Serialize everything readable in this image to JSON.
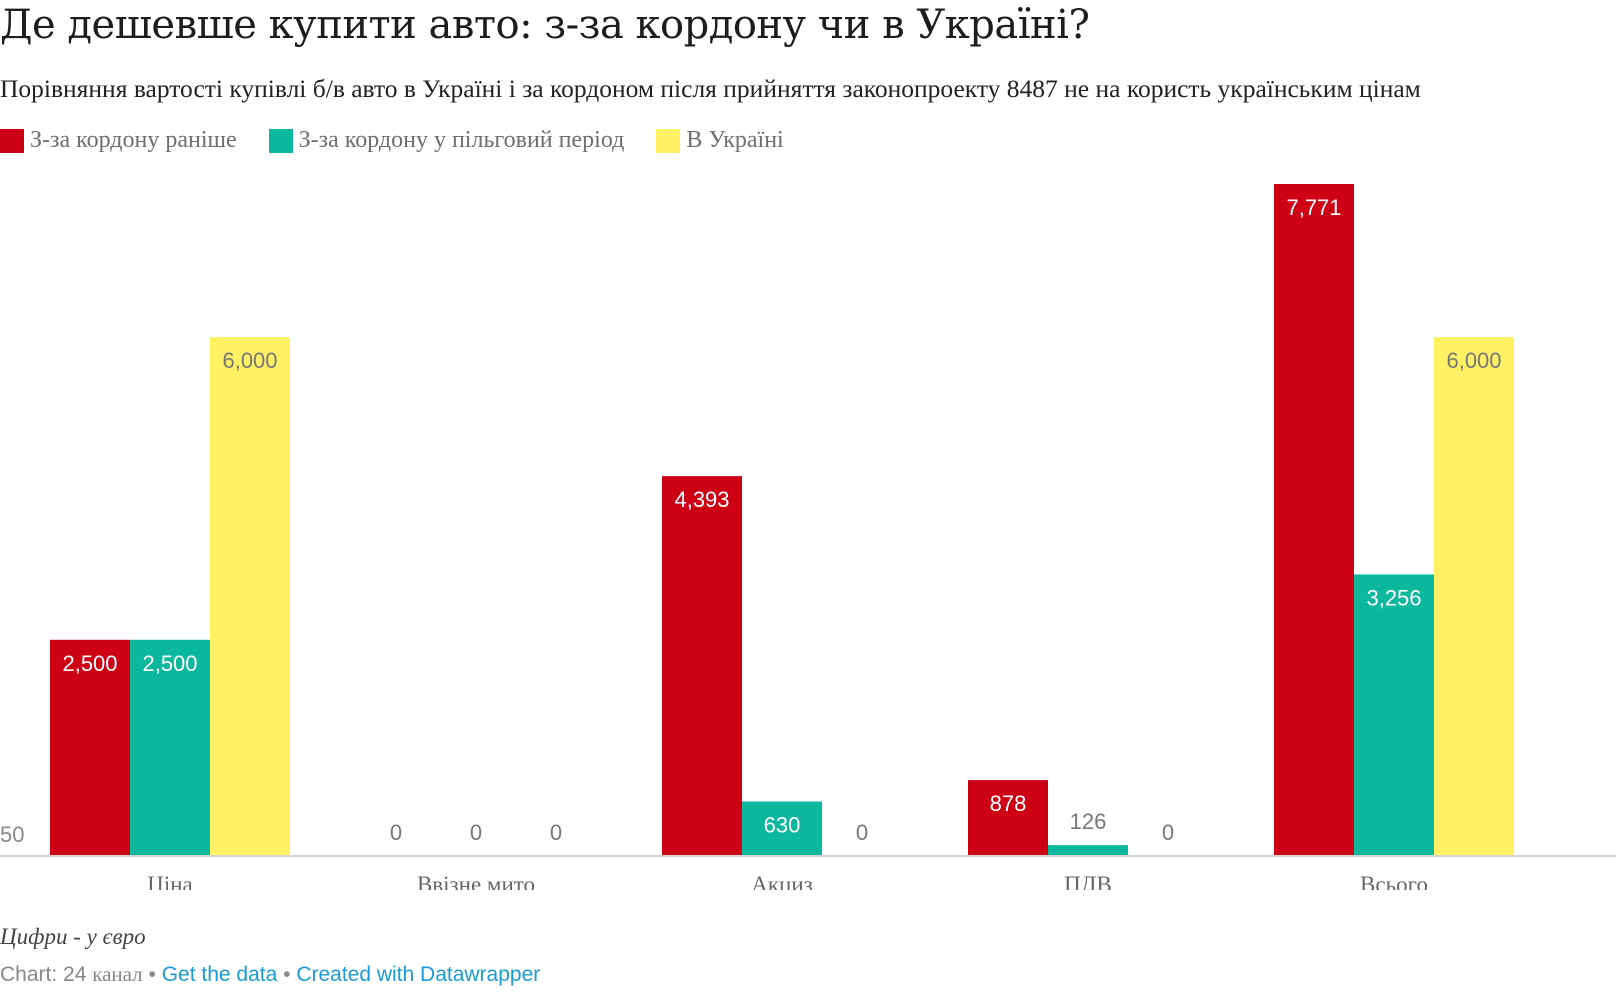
{
  "title": "Де дешевше купити авто: з-за кордону чи в Україні?",
  "subtitle": "Порівняння вартості купівлі б/в авто в Україні і за кордоном після прийняття законопроекту 8487 не на користь українським цінам",
  "colors": {
    "red": "#cd0016",
    "teal": "#0bb89c",
    "yellow": "#fff064"
  },
  "chart_data": {
    "type": "bar",
    "categories": [
      "Ціна",
      "Ввізне мито",
      "Акциз",
      "ПДВ",
      "Всього"
    ],
    "series": [
      {
        "name": "З-за кордону раніше",
        "color": "#cd0016",
        "values": [
          2500,
          0,
          4393,
          878,
          7771
        ]
      },
      {
        "name": "З-за кордону у пільговий період",
        "color": "#0bb89c",
        "values": [
          2500,
          0,
          630,
          126,
          3256
        ]
      },
      {
        "name": "В Україні",
        "color": "#fff064",
        "values": [
          6000,
          0,
          0,
          0,
          6000
        ]
      }
    ],
    "value_labels": [
      [
        "2,500",
        "0",
        "4,393",
        "878",
        "7,771"
      ],
      [
        "2,500",
        "0",
        "630",
        "126",
        "3,256"
      ],
      [
        "6,000",
        "0",
        "0",
        "0",
        "6,000"
      ]
    ],
    "ylim": [
      0,
      7771
    ],
    "y_tick_partial": "50",
    "grid": false,
    "legend_position": "top-left"
  },
  "note": "Цифри - у євро",
  "footer": {
    "prefix": "Chart: 24 ",
    "source": "канал",
    "sep1": " • ",
    "get_data": "Get the data",
    "sep2": " • ",
    "created_with": "Created with Datawrapper"
  }
}
